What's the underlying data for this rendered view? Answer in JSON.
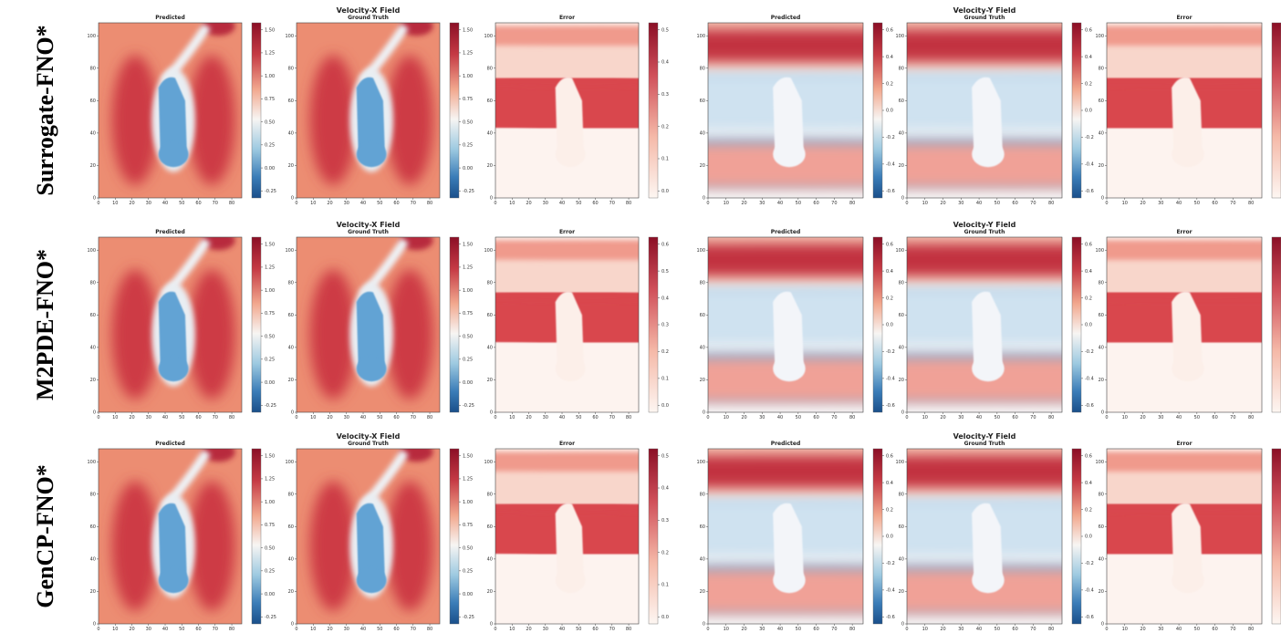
{
  "groups": [
    {
      "title": "Velocity-X Field"
    },
    {
      "title": "Velocity-Y Field"
    }
  ],
  "panel_titles": [
    "Predicted",
    "Ground Truth",
    "Error"
  ],
  "xticks": [
    "0",
    "10",
    "20",
    "30",
    "40",
    "50",
    "60",
    "70",
    "80"
  ],
  "yticks": [
    "0",
    "20",
    "40",
    "60",
    "80",
    "100"
  ],
  "rows": [
    {
      "label": "Surrogate-FNO*",
      "colorbars": [
        [
          "-0.25",
          "0.00",
          "0.25",
          "0.50",
          "0.75",
          "1.00",
          "1.25",
          "1.50"
        ],
        [
          "-0.25",
          "0.00",
          "0.25",
          "0.50",
          "0.75",
          "1.00",
          "1.25",
          "1.50"
        ],
        [
          "0.0",
          "0.1",
          "0.2",
          "0.3",
          "0.4",
          "0.5"
        ],
        [
          "-0.6",
          "-0.4",
          "-0.2",
          "0.0",
          "0.2",
          "0.4",
          "0.6"
        ],
        [
          "-0.6",
          "-0.4",
          "-0.2",
          "0.0",
          "0.2",
          "0.4",
          "0.6"
        ],
        []
      ]
    },
    {
      "label": "M2PDE-FNO*",
      "colorbars": [
        [
          "-0.25",
          "0.00",
          "0.25",
          "0.50",
          "0.75",
          "1.00",
          "1.25",
          "1.50"
        ],
        [
          "-0.25",
          "0.00",
          "0.25",
          "0.50",
          "0.75",
          "1.00",
          "1.25",
          "1.50"
        ],
        [
          "0.0",
          "0.1",
          "0.2",
          "0.3",
          "0.4",
          "0.5",
          "0.6"
        ],
        [
          "-0.6",
          "-0.4",
          "-0.2",
          "0.0",
          "0.2",
          "0.4",
          "0.6"
        ],
        [
          "-0.6",
          "-0.4",
          "-0.2",
          "0.0",
          "0.2",
          "0.4",
          "0.6"
        ],
        []
      ]
    },
    {
      "label": "GenCP-FNO*",
      "colorbars": [
        [
          "-0.25",
          "0.00",
          "0.25",
          "0.50",
          "0.75",
          "1.00",
          "1.25",
          "1.50"
        ],
        [
          "-0.25",
          "0.00",
          "0.25",
          "0.50",
          "0.75",
          "1.00",
          "1.25",
          "1.50"
        ],
        [
          "0.0",
          "0.1",
          "0.2",
          "0.3",
          "0.4",
          "0.5"
        ],
        [
          "-0.6",
          "-0.4",
          "-0.2",
          "0.0",
          "0.2",
          "0.4",
          "0.6"
        ],
        [
          "-0.6",
          "-0.4",
          "-0.2",
          "0.0",
          "0.2",
          "0.4",
          "0.6"
        ],
        []
      ]
    }
  ]
}
